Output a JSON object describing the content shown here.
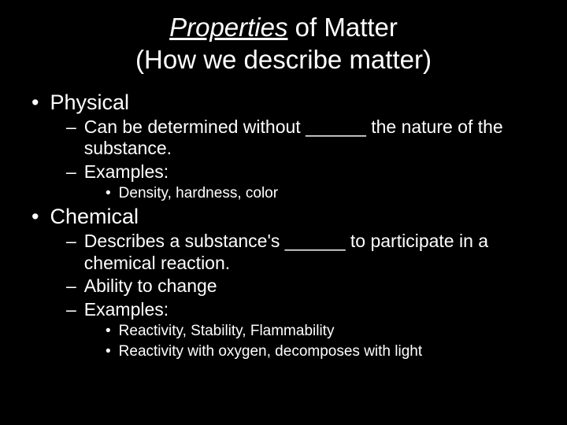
{
  "title": {
    "underlined": "Properties",
    "rest": " of Matter",
    "subtitle": "(How we describe matter)"
  },
  "items": {
    "physical": {
      "label": "Physical",
      "sub1": "Can be determined without ______ the nature of the substance.",
      "sub2": "Examples:",
      "ex1": "Density, hardness, color"
    },
    "chemical": {
      "label": "Chemical",
      "sub1": "Describes a substance's ______ to participate in a chemical reaction.",
      "sub2": "Ability to change",
      "sub3": "Examples:",
      "ex1": "Reactivity, Stability, Flammability",
      "ex2": "Reactivity with oxygen, decomposes with light"
    }
  },
  "style": {
    "background": "#000000",
    "text_color": "#ffffff",
    "title_fontsize": 33,
    "level1_fontsize": 27,
    "level2_fontsize": 23,
    "level3_fontsize": 19,
    "bullet_l1": "•",
    "bullet_l2": "–",
    "bullet_l3": "•"
  }
}
